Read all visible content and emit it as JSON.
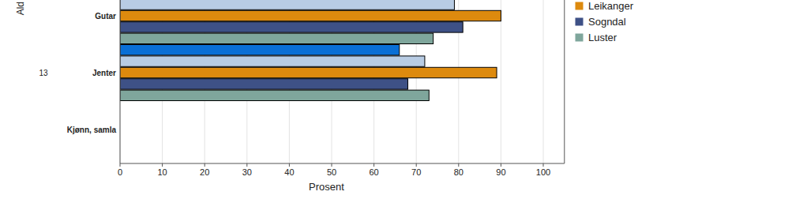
{
  "chart_data": {
    "type": "bar",
    "orientation": "horizontal",
    "x_label": "Prosent",
    "y_label": "Ald",
    "annotations": [
      "13"
    ],
    "categories": [
      "Gutar",
      "Jenter",
      "Kjønn, samla"
    ],
    "series": [
      {
        "name": null,
        "color": "#0a6fd6",
        "values": [
          null,
          66,
          null
        ]
      },
      {
        "name": null,
        "color": "#b8cce4",
        "values": [
          79,
          72,
          null
        ]
      },
      {
        "name": "Leikanger",
        "color": "#dd8a0e",
        "values": [
          90,
          89,
          null
        ]
      },
      {
        "name": "Sogndal",
        "color": "#3e5186",
        "values": [
          81,
          68,
          null
        ]
      },
      {
        "name": "Luster",
        "color": "#7fa69c",
        "values": [
          74,
          73,
          null
        ]
      }
    ],
    "xlim": [
      0,
      105
    ],
    "xticks": [
      0,
      10,
      20,
      30,
      40,
      50,
      60,
      70,
      80,
      90,
      100
    ],
    "grid": true,
    "legend": "right"
  }
}
